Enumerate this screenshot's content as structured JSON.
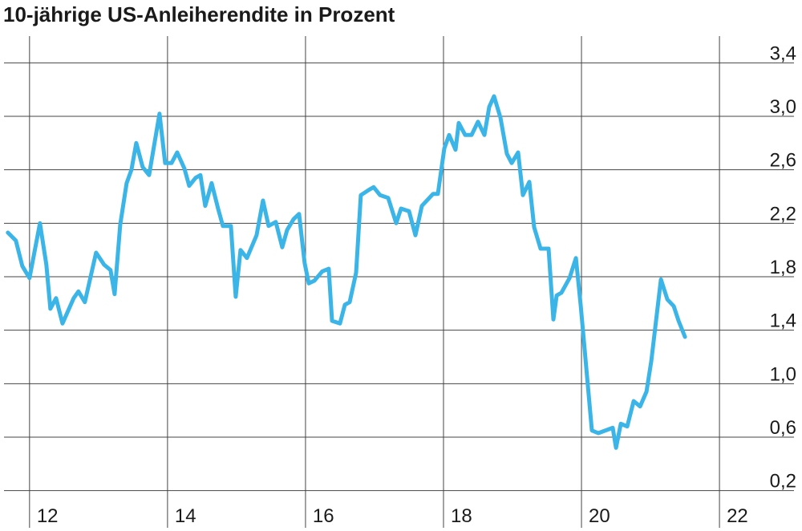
{
  "chart_data": {
    "type": "line",
    "title": "10-jährige US-Anleiherendite in Prozent",
    "x": [
      11.686,
      11.802,
      11.895,
      12.0,
      12.151,
      12.244,
      12.302,
      12.384,
      12.477,
      12.64,
      12.709,
      12.802,
      12.965,
      13.081,
      13.174,
      13.233,
      13.314,
      13.407,
      13.477,
      13.547,
      13.64,
      13.733,
      13.884,
      13.965,
      14.058,
      14.14,
      14.244,
      14.314,
      14.407,
      14.477,
      14.547,
      14.64,
      14.733,
      14.802,
      14.919,
      14.988,
      15.058,
      15.151,
      15.291,
      15.384,
      15.465,
      15.57,
      15.663,
      15.733,
      15.826,
      15.907,
      15.988,
      16.047,
      16.128,
      16.244,
      16.337,
      16.384,
      16.5,
      16.57,
      16.64,
      16.733,
      16.802,
      16.919,
      16.988,
      17.081,
      17.198,
      17.314,
      17.384,
      17.5,
      17.593,
      17.686,
      17.849,
      17.919,
      18.012,
      18.081,
      18.174,
      18.221,
      18.314,
      18.407,
      18.5,
      18.593,
      18.663,
      18.733,
      18.826,
      18.919,
      18.988,
      19.081,
      19.151,
      19.244,
      19.314,
      19.407,
      19.523,
      19.593,
      19.64,
      19.709,
      19.826,
      19.919,
      19.988,
      20.151,
      20.244,
      20.453,
      20.5,
      20.57,
      20.663,
      20.756,
      20.849,
      20.942,
      21.012,
      21.081,
      21.151,
      21.244,
      21.337,
      21.407,
      21.5
    ],
    "series": [
      {
        "color": "#3bb5e8",
        "values": [
          2.13,
          2.07,
          1.88,
          1.79,
          2.2,
          1.89,
          1.56,
          1.64,
          1.45,
          1.64,
          1.69,
          1.61,
          1.98,
          1.89,
          1.85,
          1.67,
          2.19,
          2.5,
          2.6,
          2.8,
          2.62,
          2.56,
          3.02,
          2.65,
          2.65,
          2.73,
          2.61,
          2.48,
          2.54,
          2.56,
          2.33,
          2.5,
          2.31,
          2.18,
          2.18,
          1.65,
          2.0,
          1.94,
          2.11,
          2.37,
          2.18,
          2.21,
          2.02,
          2.15,
          2.23,
          2.27,
          1.9,
          1.75,
          1.77,
          1.84,
          1.86,
          1.47,
          1.45,
          1.59,
          1.61,
          1.83,
          2.41,
          2.45,
          2.47,
          2.41,
          2.39,
          2.2,
          2.31,
          2.29,
          2.11,
          2.33,
          2.42,
          2.42,
          2.76,
          2.86,
          2.75,
          2.95,
          2.86,
          2.86,
          2.96,
          2.86,
          3.07,
          3.15,
          2.99,
          2.72,
          2.65,
          2.73,
          2.41,
          2.51,
          2.17,
          2.01,
          2.01,
          1.48,
          1.66,
          1.68,
          1.79,
          1.94,
          1.59,
          0.65,
          0.63,
          0.67,
          0.52,
          0.7,
          0.68,
          0.87,
          0.83,
          0.94,
          1.17,
          1.47,
          1.78,
          1.63,
          1.58,
          1.47,
          1.35
        ]
      }
    ],
    "xlim": [
      11.63,
      23.08
    ],
    "xticks": [
      12,
      14,
      16,
      18,
      20,
      22
    ],
    "ylim": [
      0,
      3.6
    ],
    "yticks": [
      {
        "value": 0.2,
        "label": "0,2"
      },
      {
        "value": 0.6,
        "label": "0,6"
      },
      {
        "value": 1.0,
        "label": "1,0"
      },
      {
        "value": 1.4,
        "label": "1,4"
      },
      {
        "value": 1.8,
        "label": "1,8"
      },
      {
        "value": 2.2,
        "label": "2,2"
      },
      {
        "value": 2.6,
        "label": "2,6"
      },
      {
        "value": 3.0,
        "label": "3,0"
      },
      {
        "value": 3.4,
        "label": "3,4"
      }
    ],
    "grid": true
  }
}
